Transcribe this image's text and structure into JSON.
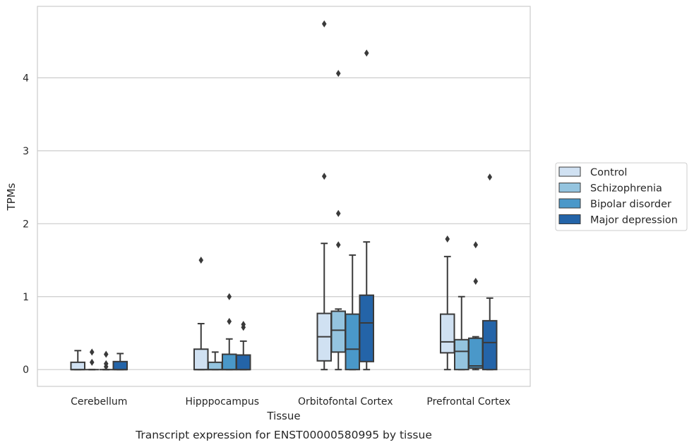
{
  "chart_data": {
    "type": "box",
    "title": "",
    "caption": "Transcript expression for ENST00000580995 by tissue",
    "xlabel": "Tissue",
    "ylabel": "TPMs",
    "ylim": [
      -0.23,
      4.98
    ],
    "yticks": [
      0,
      1,
      2,
      3,
      4
    ],
    "grid": "horizontal",
    "legend_position": "right",
    "categories": [
      "Cerebellum",
      "Hipppocampus",
      "Orbitofontal Cortex",
      "Prefrontal Cortex"
    ],
    "series": [
      {
        "name": "Control",
        "color": "#d0e1f2",
        "boxes": [
          {
            "q1": 0,
            "median": 0,
            "q3": 0.1,
            "whisker_low": 0,
            "whisker_high": 0.26,
            "outliers": []
          },
          {
            "q1": 0,
            "median": 0,
            "q3": 0.28,
            "whisker_low": 0,
            "whisker_high": 0.63,
            "outliers": [
              1.5
            ]
          },
          {
            "q1": 0.12,
            "median": 0.45,
            "q3": 0.77,
            "whisker_low": 0,
            "whisker_high": 1.73,
            "outliers": [
              2.65,
              4.74
            ]
          },
          {
            "q1": 0.23,
            "median": 0.38,
            "q3": 0.76,
            "whisker_low": 0,
            "whisker_high": 1.55,
            "outliers": [
              1.79
            ]
          }
        ]
      },
      {
        "name": "Schizophrenia",
        "color": "#94c4df",
        "boxes": [
          {
            "q1": 0,
            "median": 0,
            "q3": 0,
            "whisker_low": 0,
            "whisker_high": 0,
            "outliers": [
              0.1,
              0.24
            ]
          },
          {
            "q1": 0,
            "median": 0,
            "q3": 0.1,
            "whisker_low": 0,
            "whisker_high": 0.24,
            "outliers": []
          },
          {
            "q1": 0.24,
            "median": 0.54,
            "q3": 0.8,
            "whisker_low": 0,
            "whisker_high": 0.83,
            "outliers": [
              1.71,
              2.14,
              4.06
            ]
          },
          {
            "q1": 0,
            "median": 0.25,
            "q3": 0.41,
            "whisker_low": 0,
            "whisker_high": 1.0,
            "outliers": []
          }
        ]
      },
      {
        "name": "Bipolar disorder",
        "color": "#4a98c9",
        "boxes": [
          {
            "q1": 0,
            "median": 0,
            "q3": 0,
            "whisker_low": 0,
            "whisker_high": 0,
            "outliers": [
              0.04,
              0.08,
              0.21
            ]
          },
          {
            "q1": 0,
            "median": 0,
            "q3": 0.21,
            "whisker_low": 0,
            "whisker_high": 0.42,
            "outliers": [
              0.66,
              1.0
            ]
          },
          {
            "q1": 0,
            "median": 0.28,
            "q3": 0.76,
            "whisker_low": 0,
            "whisker_high": 1.57,
            "outliers": []
          },
          {
            "q1": 0.02,
            "median": 0.05,
            "q3": 0.43,
            "whisker_low": 0,
            "whisker_high": 0.45,
            "outliers": [
              1.21,
              1.71
            ]
          }
        ]
      },
      {
        "name": "Major depression",
        "color": "#2464a8",
        "boxes": [
          {
            "q1": 0,
            "median": 0,
            "q3": 0.11,
            "whisker_low": 0,
            "whisker_high": 0.22,
            "outliers": []
          },
          {
            "q1": 0,
            "median": 0,
            "q3": 0.2,
            "whisker_low": 0,
            "whisker_high": 0.39,
            "outliers": [
              0.58,
              0.62
            ]
          },
          {
            "q1": 0.11,
            "median": 0.64,
            "q3": 1.02,
            "whisker_low": 0,
            "whisker_high": 1.75,
            "outliers": [
              4.34
            ]
          },
          {
            "q1": 0,
            "median": 0.37,
            "q3": 0.67,
            "whisker_low": 0,
            "whisker_high": 0.98,
            "outliers": [
              2.64
            ]
          }
        ]
      }
    ],
    "colors": {
      "grid": "#cccccc",
      "frame": "#cccccc",
      "box_edge": "#3a3a3a",
      "outlier": "#3a3a3a"
    }
  }
}
